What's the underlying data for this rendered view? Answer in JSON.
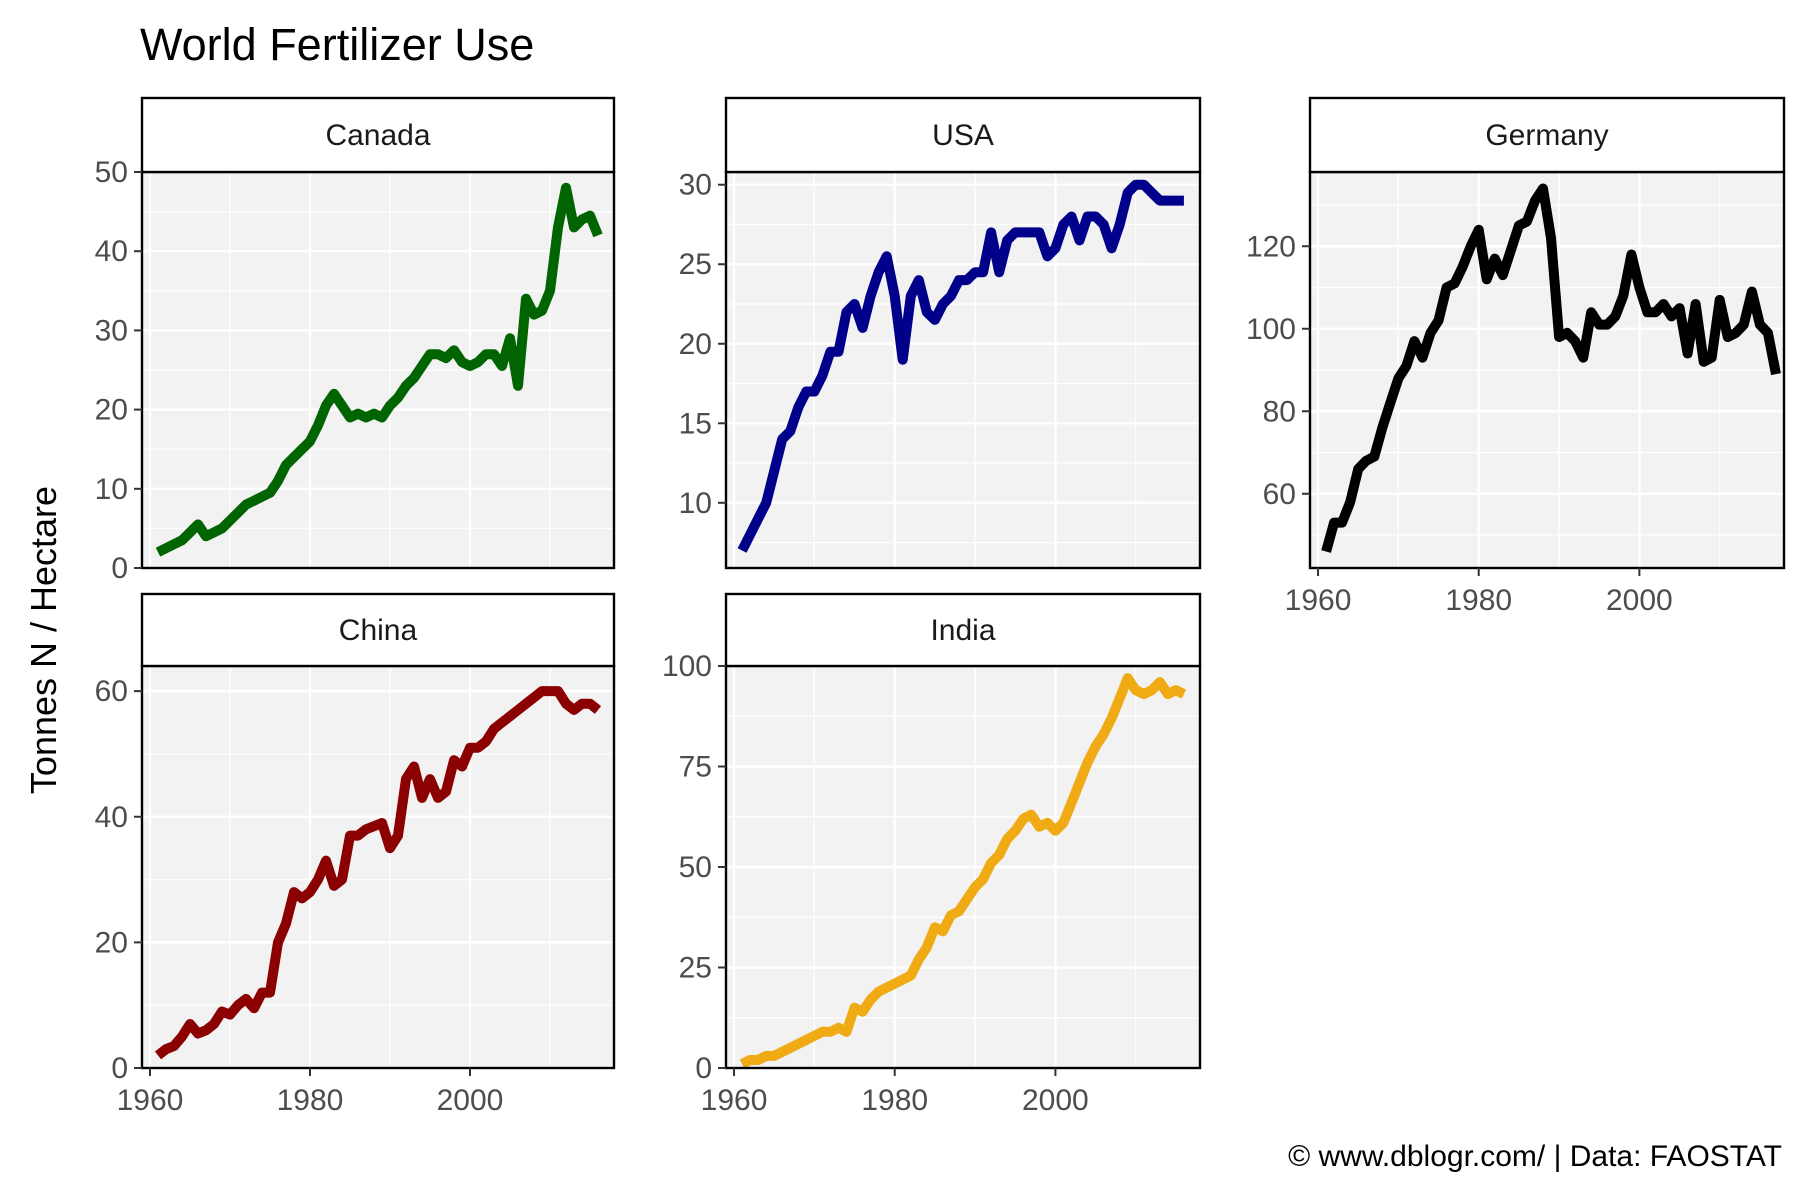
{
  "title": "World Fertilizer Use",
  "ylabel": "Tonnes N / Hectare",
  "caption": "© www.dblogr.com/ | Data: FAOSTAT",
  "panel_background": "#f2f2f2",
  "grid_color": "#ffffff",
  "chart_data": [
    {
      "type": "line",
      "name": "Canada",
      "color": "#006400",
      "xlim": [
        1959,
        2018
      ],
      "ylim": [
        0,
        50
      ],
      "xticks": [
        1960,
        1980,
        2000
      ],
      "yticks": [
        0,
        10,
        20,
        30,
        40,
        50
      ],
      "show_x_axis": false,
      "x": [
        1961,
        1962,
        1963,
        1964,
        1965,
        1966,
        1967,
        1968,
        1969,
        1970,
        1971,
        1972,
        1973,
        1974,
        1975,
        1976,
        1977,
        1978,
        1979,
        1980,
        1981,
        1982,
        1983,
        1984,
        1985,
        1986,
        1987,
        1988,
        1989,
        1990,
        1991,
        1992,
        1993,
        1994,
        1995,
        1996,
        1997,
        1998,
        1999,
        2000,
        2001,
        2002,
        2003,
        2004,
        2005,
        2006,
        2007,
        2008,
        2009,
        2010,
        2011,
        2012,
        2013,
        2014,
        2015,
        2016
      ],
      "y": [
        2,
        2.5,
        3,
        3.5,
        4.5,
        5.5,
        4,
        4.5,
        5,
        6,
        7,
        8,
        8.5,
        9,
        9.5,
        11,
        13,
        14,
        15,
        16,
        18,
        20.5,
        22,
        20.5,
        19,
        19.5,
        19,
        19.5,
        19,
        20.5,
        21.5,
        23,
        24,
        25.5,
        27,
        27,
        26.5,
        27.5,
        26,
        25.5,
        26,
        27,
        27,
        25.5,
        29,
        23,
        34,
        32,
        32.5,
        35,
        43,
        48,
        43,
        44,
        44.5,
        42
      ]
    },
    {
      "type": "line",
      "name": "USA",
      "color": "#00008b",
      "xlim": [
        1959,
        2018
      ],
      "ylim": [
        5.9,
        30.8
      ],
      "xticks": [
        1960,
        1980,
        2000
      ],
      "yticks": [
        10,
        15,
        20,
        25,
        30
      ],
      "show_x_axis": false,
      "x": [
        1961,
        1962,
        1963,
        1964,
        1965,
        1966,
        1967,
        1968,
        1969,
        1970,
        1971,
        1972,
        1973,
        1974,
        1975,
        1976,
        1977,
        1978,
        1979,
        1980,
        1981,
        1982,
        1983,
        1984,
        1985,
        1986,
        1987,
        1988,
        1989,
        1990,
        1991,
        1992,
        1993,
        1994,
        1995,
        1996,
        1997,
        1998,
        1999,
        2000,
        2001,
        2002,
        2003,
        2004,
        2005,
        2006,
        2007,
        2008,
        2009,
        2010,
        2011,
        2012,
        2013,
        2014,
        2015,
        2016
      ],
      "y": [
        7,
        8,
        9,
        10,
        12,
        14,
        14.5,
        16,
        17,
        17,
        18,
        19.5,
        19.5,
        22,
        22.5,
        21,
        23,
        24.5,
        25.5,
        23,
        19,
        23,
        24,
        22,
        21.5,
        22.5,
        23,
        24,
        24,
        24.5,
        24.5,
        27,
        24.5,
        26.5,
        27,
        27,
        27,
        27,
        25.5,
        26,
        27.5,
        28,
        26.5,
        28,
        28,
        27.5,
        26,
        27.5,
        29.5,
        30,
        30,
        29.5,
        29,
        29,
        29,
        29
      ]
    },
    {
      "type": "line",
      "name": "Germany",
      "color": "#000000",
      "xlim": [
        1959,
        2018
      ],
      "ylim": [
        42,
        138
      ],
      "xticks": [
        1960,
        1980,
        2000
      ],
      "yticks": [
        60,
        80,
        100,
        120
      ],
      "show_x_axis": true,
      "x": [
        1961,
        1962,
        1963,
        1964,
        1965,
        1966,
        1967,
        1968,
        1969,
        1970,
        1971,
        1972,
        1973,
        1974,
        1975,
        1976,
        1977,
        1978,
        1979,
        1980,
        1981,
        1982,
        1983,
        1984,
        1985,
        1986,
        1987,
        1988,
        1989,
        1990,
        1991,
        1992,
        1993,
        1994,
        1995,
        1996,
        1997,
        1998,
        1999,
        2000,
        2001,
        2002,
        2003,
        2004,
        2005,
        2006,
        2007,
        2008,
        2009,
        2010,
        2011,
        2012,
        2013,
        2014,
        2015,
        2016,
        2017
      ],
      "y": [
        46,
        53,
        53,
        58,
        66,
        68,
        69,
        76,
        82,
        88,
        91,
        97,
        93,
        99,
        102,
        110,
        111,
        115,
        120,
        124,
        112,
        117,
        113,
        119,
        125,
        126,
        131,
        134,
        122,
        98,
        99,
        97,
        93,
        104,
        101,
        101,
        103,
        108,
        118,
        110,
        104,
        104,
        106,
        103,
        105,
        94,
        106,
        92,
        93,
        107,
        98,
        99,
        101,
        109,
        101,
        99,
        89
      ]
    },
    {
      "type": "line",
      "name": "China",
      "color": "#8b0000",
      "xlim": [
        1959,
        2018
      ],
      "ylim": [
        0,
        64
      ],
      "xticks": [
        1960,
        1980,
        2000
      ],
      "yticks": [
        0,
        20,
        40,
        60
      ],
      "show_x_axis": true,
      "x": [
        1961,
        1962,
        1963,
        1964,
        1965,
        1966,
        1967,
        1968,
        1969,
        1970,
        1971,
        1972,
        1973,
        1974,
        1975,
        1976,
        1977,
        1978,
        1979,
        1980,
        1981,
        1982,
        1983,
        1984,
        1985,
        1986,
        1987,
        1988,
        1989,
        1990,
        1991,
        1992,
        1993,
        1994,
        1995,
        1996,
        1997,
        1998,
        1999,
        2000,
        2001,
        2002,
        2003,
        2004,
        2005,
        2006,
        2007,
        2008,
        2009,
        2010,
        2011,
        2012,
        2013,
        2014,
        2015,
        2016
      ],
      "y": [
        2,
        3,
        3.5,
        5,
        7,
        5.5,
        6,
        7,
        9,
        8.5,
        10,
        11,
        9.5,
        12,
        12,
        20,
        23,
        28,
        27,
        28,
        30,
        33,
        29,
        30,
        37,
        37,
        38,
        38.5,
        39,
        35,
        37,
        46,
        48,
        43,
        46,
        43,
        44,
        49,
        48,
        51,
        51,
        52,
        54,
        55,
        56,
        57,
        58,
        59,
        60,
        60,
        60,
        58,
        57,
        58,
        58,
        57
      ]
    },
    {
      "type": "line",
      "name": "India",
      "color": "#efaa14",
      "xlim": [
        1959,
        2018
      ],
      "ylim": [
        0,
        100
      ],
      "xticks": [
        1960,
        1980,
        2000
      ],
      "yticks": [
        0,
        25,
        50,
        75,
        100
      ],
      "show_x_axis": true,
      "x": [
        1961,
        1962,
        1963,
        1964,
        1965,
        1966,
        1967,
        1968,
        1969,
        1970,
        1971,
        1972,
        1973,
        1974,
        1975,
        1976,
        1977,
        1978,
        1979,
        1980,
        1981,
        1982,
        1983,
        1984,
        1985,
        1986,
        1987,
        1988,
        1989,
        1990,
        1991,
        1992,
        1993,
        1994,
        1995,
        1996,
        1997,
        1998,
        1999,
        2000,
        2001,
        2002,
        2003,
        2004,
        2005,
        2006,
        2007,
        2008,
        2009,
        2010,
        2011,
        2012,
        2013,
        2014,
        2015,
        2016
      ],
      "y": [
        1,
        2,
        2,
        3,
        3,
        4,
        5,
        6,
        7,
        8,
        9,
        9,
        10,
        9,
        15,
        14,
        17,
        19,
        20,
        21,
        22,
        23,
        27,
        30,
        35,
        34,
        38,
        39,
        42,
        45,
        47,
        51,
        53,
        57,
        59,
        62,
        63,
        60,
        61,
        59,
        61,
        66,
        71,
        76,
        80,
        83,
        87,
        92,
        97,
        94,
        93,
        94,
        96,
        93,
        94,
        93
      ]
    }
  ]
}
